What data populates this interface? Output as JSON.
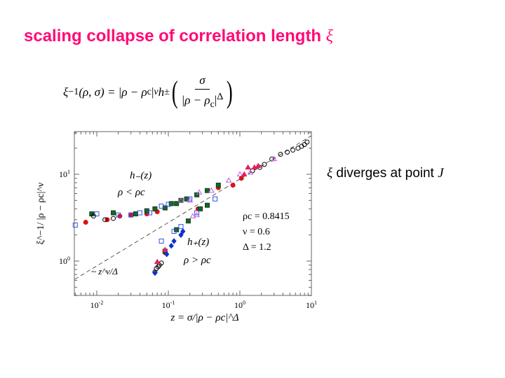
{
  "title": {
    "text": "scaling collapse of correlation length",
    "symbol": "ξ"
  },
  "formula": {
    "lhs": "ξ",
    "lhs_sup": "−1",
    "lhs_args": "(ρ, σ) = |ρ − ρ",
    "c1": "c",
    "abs_sup": "|",
    "nu": "ν",
    "h": " h",
    "pm": "±",
    "num": "σ",
    "den": "|ρ − ρ",
    "c2": "c",
    "den_close": "|",
    "delta": "Δ"
  },
  "side_note": {
    "symbol": "ξ",
    "text": " diverges at point ",
    "point": "J"
  },
  "chart_data": {
    "type": "scatter",
    "xscale": "log",
    "yscale": "log",
    "xlim": [
      0.0049,
      10
    ],
    "ylim": [
      0.4,
      31
    ],
    "xlabel": "z = σ/|ρ − ρc|^Δ",
    "ylabel": "ξ^−1/ |ρ − ρc|^ν",
    "xticks": [
      {
        "base": "10",
        "exp": "-2",
        "value": 0.01
      },
      {
        "base": "10",
        "exp": "-1",
        "value": 0.1
      },
      {
        "base": "10",
        "exp": "0",
        "value": 1
      },
      {
        "base": "10",
        "exp": "1",
        "value": 10
      }
    ],
    "yticks": [
      {
        "base": "10",
        "exp": "0",
        "value": 1
      },
      {
        "base": "10",
        "exp": "1",
        "value": 10
      }
    ],
    "annotations": {
      "hminus": "h₋(z)",
      "below": "ρ < ρc",
      "hplus": "h₊(z)",
      "above": "ρ > ρc",
      "rho_c": "ρc = 0.8415",
      "nu": "ν = 0.6",
      "delta": "Δ = 1.2",
      "asym": "~ z^ν/Δ"
    },
    "asymptote": {
      "form": "c·z^(ν/Δ)",
      "exponent": 0.5,
      "c": 8.8,
      "style": "dashed"
    },
    "series": [
      {
        "name": "red-filled-circles",
        "marker": "circle",
        "filled": true,
        "color": "#d81418",
        "points": [
          [
            0.007,
            2.8
          ],
          [
            0.014,
            3.0
          ],
          [
            0.021,
            3.3
          ],
          [
            0.03,
            3.4
          ],
          [
            0.05,
            3.5
          ],
          [
            0.07,
            3.7
          ],
          [
            0.5,
            7.0
          ],
          [
            0.8,
            7.5
          ],
          [
            1.05,
            9.0
          ],
          [
            0.09,
            1.25
          ],
          [
            0.26,
            4.0
          ]
        ]
      },
      {
        "name": "green-squares",
        "marker": "square",
        "filled": true,
        "color": "#0d6b1e",
        "points": [
          [
            0.0085,
            3.5
          ],
          [
            0.017,
            3.6
          ],
          [
            0.035,
            3.5
          ],
          [
            0.05,
            3.8
          ],
          [
            0.065,
            4.0
          ],
          [
            0.09,
            4.1
          ],
          [
            0.11,
            4.6
          ],
          [
            0.13,
            4.6
          ],
          [
            0.15,
            5.0
          ],
          [
            0.18,
            5.2
          ],
          [
            0.25,
            5.8
          ],
          [
            0.35,
            6.5
          ],
          [
            0.5,
            7.5
          ],
          [
            0.09,
            1.3
          ],
          [
            0.13,
            2.3
          ],
          [
            0.19,
            2.9
          ],
          [
            0.28,
            4.0
          ],
          [
            0.35,
            4.4
          ]
        ]
      },
      {
        "name": "blue-open-squares",
        "marker": "square",
        "filled": false,
        "color": "#3050e8",
        "points": [
          [
            0.005,
            2.6
          ],
          [
            0.01,
            3.5
          ],
          [
            0.02,
            3.4
          ],
          [
            0.03,
            3.4
          ],
          [
            0.04,
            3.6
          ],
          [
            0.055,
            3.6
          ],
          [
            0.08,
            4.3
          ],
          [
            0.1,
            4.5
          ],
          [
            0.2,
            5.2
          ],
          [
            0.45,
            5.2
          ],
          [
            0.08,
            1.7
          ],
          [
            0.12,
            2.2
          ],
          [
            0.15,
            2.5
          ],
          [
            0.25,
            3.6
          ]
        ]
      },
      {
        "name": "black-open-circles",
        "marker": "circle",
        "filled": false,
        "color": "#000000",
        "points": [
          [
            0.009,
            3.3
          ],
          [
            0.013,
            3.0
          ],
          [
            0.017,
            3.1
          ],
          [
            0.065,
            0.75
          ],
          [
            0.068,
            0.82
          ],
          [
            0.072,
            0.86
          ],
          [
            0.075,
            0.9
          ],
          [
            0.08,
            0.95
          ],
          [
            1.5,
            11
          ],
          [
            1.9,
            12
          ],
          [
            2.2,
            13
          ],
          [
            2.8,
            15
          ],
          [
            3.7,
            17
          ],
          [
            4.6,
            18
          ],
          [
            5.5,
            19
          ],
          [
            6.5,
            20
          ],
          [
            7.3,
            21
          ],
          [
            8,
            22
          ],
          [
            8.7,
            23.5
          ]
        ]
      },
      {
        "name": "violet-open-triangles",
        "marker": "triangle",
        "filled": false,
        "color": "#c060e0",
        "points": [
          [
            0.15,
            5.0
          ],
          [
            0.2,
            5.0
          ],
          [
            0.27,
            6.2
          ],
          [
            0.4,
            6.5
          ],
          [
            0.7,
            8.5
          ],
          [
            1.0,
            10
          ],
          [
            1.4,
            10.5
          ],
          [
            3.0,
            15
          ],
          [
            0.22,
            3.3
          ],
          [
            0.25,
            3.4
          ]
        ]
      },
      {
        "name": "pink-filled-triangles",
        "marker": "triangle",
        "filled": true,
        "color": "#e0205a",
        "points": [
          [
            1.15,
            10
          ],
          [
            1.3,
            12
          ],
          [
            1.6,
            12
          ],
          [
            1.8,
            12.5
          ],
          [
            0.09,
            1.35
          ],
          [
            0.07,
            0.98
          ]
        ]
      },
      {
        "name": "blue-filled-diamonds",
        "marker": "diamond",
        "filled": true,
        "color": "#1030d0",
        "points": [
          [
            0.065,
            0.73
          ],
          [
            0.095,
            1.2
          ],
          [
            0.11,
            1.5
          ],
          [
            0.12,
            1.7
          ],
          [
            0.15,
            2.0
          ],
          [
            0.16,
            2.2
          ]
        ]
      }
    ]
  }
}
